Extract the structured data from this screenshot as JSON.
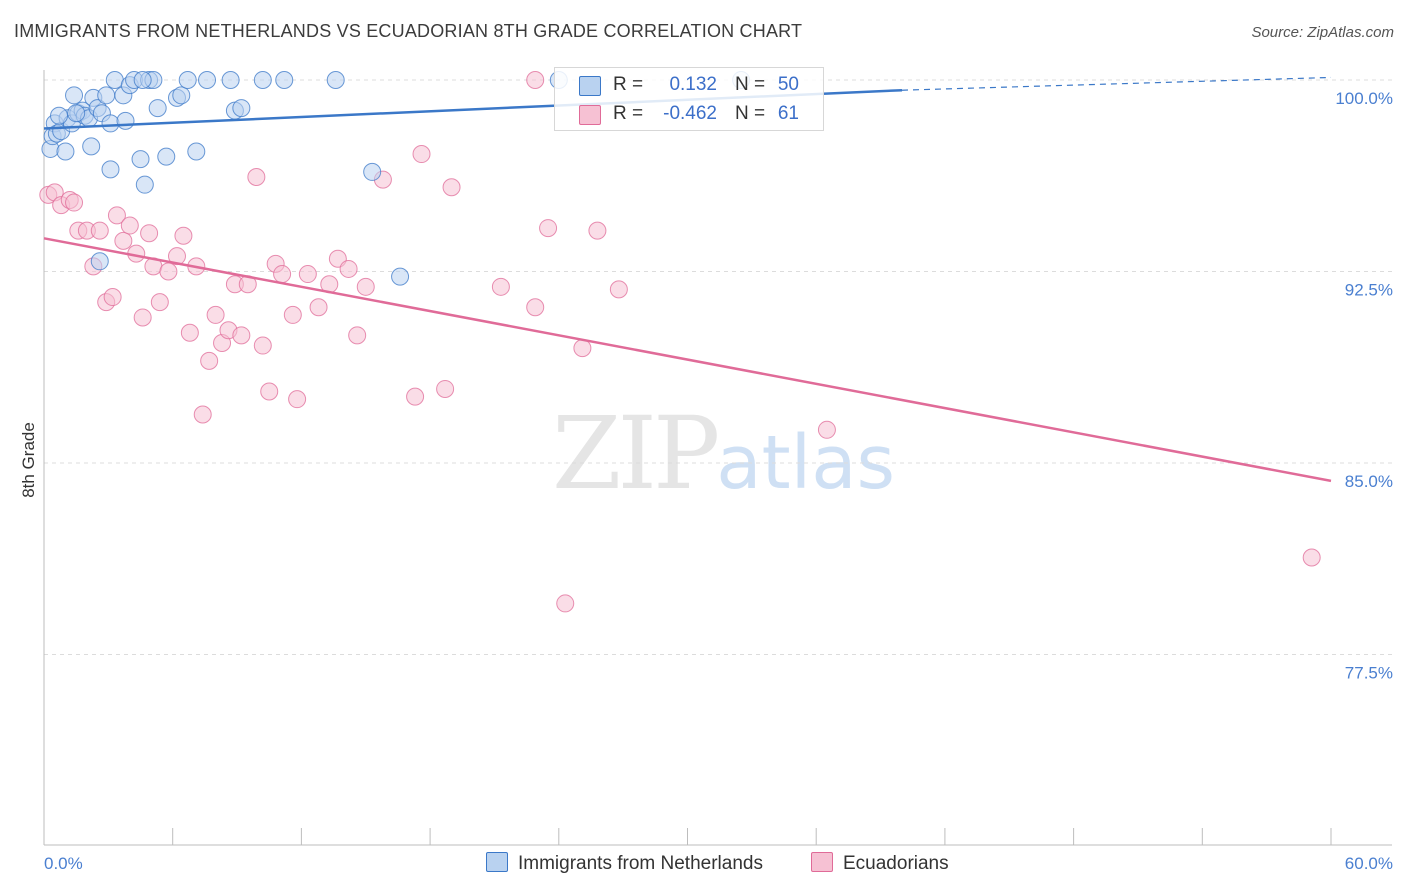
{
  "title": "IMMIGRANTS FROM NETHERLANDS VS ECUADORIAN 8TH GRADE CORRELATION CHART",
  "source": "Source: ZipAtlas.com",
  "watermark": {
    "zip": "ZIP",
    "atlas": "atlas"
  },
  "colors": {
    "blue": "#3b78c8",
    "blue_fill": "#b9d2f0",
    "pink": "#e06b98",
    "pink_fill": "#f6c1d3",
    "grid": "#dcdcdc"
  },
  "legend": {
    "rows": [
      {
        "r_label": "R =",
        "r_value": "0.132",
        "n_label": "N =",
        "n_value": "50"
      },
      {
        "r_label": "R =",
        "r_value": "-0.462",
        "n_label": "N =",
        "n_value": "61"
      }
    ]
  },
  "bottom_legend": [
    "Immigrants from Netherlands",
    "Ecuadorians"
  ],
  "chart_data": {
    "type": "scatter",
    "ylabel": "8th Grade",
    "xlim": [
      0,
      60
    ],
    "ylim": [
      70.5,
      100.5
    ],
    "x_tick_labels": [
      "0.0%",
      "60.0%"
    ],
    "y_ticks": [
      {
        "value": 100.0,
        "label": "100.0%"
      },
      {
        "value": 92.5,
        "label": "92.5%"
      },
      {
        "value": 85.0,
        "label": "85.0%"
      },
      {
        "value": 77.5,
        "label": "77.5%"
      }
    ],
    "series": [
      {
        "name": "Immigrants from Netherlands",
        "color": "#3b78c8",
        "trend": {
          "x0": 0,
          "y0": 98.1,
          "x1": 40,
          "y1": 99.6,
          "dash_to_x": 60,
          "dash_to_y": 100.1
        },
        "points": [
          [
            0.3,
            97.3
          ],
          [
            0.4,
            97.8
          ],
          [
            0.5,
            98.3
          ],
          [
            0.6,
            97.9
          ],
          [
            0.8,
            98.0
          ],
          [
            1.0,
            97.2
          ],
          [
            1.1,
            98.5
          ],
          [
            1.3,
            98.3
          ],
          [
            1.4,
            99.4
          ],
          [
            1.6,
            98.7
          ],
          [
            1.8,
            98.8
          ],
          [
            1.9,
            98.6
          ],
          [
            2.1,
            98.5
          ],
          [
            2.2,
            97.4
          ],
          [
            2.3,
            99.3
          ],
          [
            2.5,
            98.9
          ],
          [
            2.7,
            98.7
          ],
          [
            2.9,
            99.4
          ],
          [
            3.1,
            98.3
          ],
          [
            3.3,
            100.0
          ],
          [
            3.7,
            99.4
          ],
          [
            3.8,
            98.4
          ],
          [
            4.0,
            99.8
          ],
          [
            4.2,
            100.0
          ],
          [
            4.5,
            96.9
          ],
          [
            4.7,
            95.9
          ],
          [
            4.9,
            100.0
          ],
          [
            5.1,
            100.0
          ],
          [
            5.3,
            98.9
          ],
          [
            5.7,
            97.0
          ],
          [
            6.2,
            99.3
          ],
          [
            6.4,
            99.4
          ],
          [
            6.7,
            100.0
          ],
          [
            7.1,
            97.2
          ],
          [
            7.6,
            100.0
          ],
          [
            8.7,
            100.0
          ],
          [
            8.9,
            98.8
          ],
          [
            9.2,
            98.9
          ],
          [
            10.2,
            100.0
          ],
          [
            11.2,
            100.0
          ],
          [
            13.6,
            100.0
          ],
          [
            15.3,
            96.4
          ],
          [
            16.6,
            92.3
          ],
          [
            24.0,
            100.0
          ],
          [
            32.5,
            100.0
          ],
          [
            2.6,
            92.9
          ],
          [
            3.1,
            96.5
          ],
          [
            1.5,
            98.7
          ],
          [
            4.6,
            100.0
          ],
          [
            0.7,
            98.6
          ]
        ]
      },
      {
        "name": "Ecuadorians",
        "color": "#e06b98",
        "trend": {
          "x0": 0,
          "y0": 93.8,
          "x1": 60,
          "y1": 84.3
        },
        "points": [
          [
            0.2,
            95.5
          ],
          [
            0.5,
            95.6
          ],
          [
            0.8,
            95.1
          ],
          [
            1.2,
            95.3
          ],
          [
            1.4,
            95.2
          ],
          [
            1.6,
            94.1
          ],
          [
            2.0,
            94.1
          ],
          [
            2.3,
            92.7
          ],
          [
            2.6,
            94.1
          ],
          [
            2.9,
            91.3
          ],
          [
            3.2,
            91.5
          ],
          [
            3.4,
            94.7
          ],
          [
            3.7,
            93.7
          ],
          [
            4.0,
            94.3
          ],
          [
            4.3,
            93.2
          ],
          [
            4.6,
            90.7
          ],
          [
            4.9,
            94.0
          ],
          [
            5.1,
            92.7
          ],
          [
            5.4,
            91.3
          ],
          [
            5.8,
            92.5
          ],
          [
            6.2,
            93.1
          ],
          [
            6.5,
            93.9
          ],
          [
            6.8,
            90.1
          ],
          [
            7.1,
            92.7
          ],
          [
            7.4,
            86.9
          ],
          [
            7.7,
            89.0
          ],
          [
            8.0,
            90.8
          ],
          [
            8.3,
            89.7
          ],
          [
            8.6,
            90.2
          ],
          [
            8.9,
            92.0
          ],
          [
            9.2,
            90.0
          ],
          [
            9.5,
            92.0
          ],
          [
            9.9,
            96.2
          ],
          [
            10.2,
            89.6
          ],
          [
            10.5,
            87.8
          ],
          [
            10.8,
            92.8
          ],
          [
            11.1,
            92.4
          ],
          [
            11.6,
            90.8
          ],
          [
            11.8,
            87.5
          ],
          [
            12.3,
            92.4
          ],
          [
            12.8,
            91.1
          ],
          [
            13.3,
            92.0
          ],
          [
            13.7,
            93.0
          ],
          [
            14.2,
            92.6
          ],
          [
            14.6,
            90.0
          ],
          [
            15.0,
            91.9
          ],
          [
            15.8,
            96.1
          ],
          [
            17.3,
            87.6
          ],
          [
            17.6,
            97.1
          ],
          [
            18.7,
            87.9
          ],
          [
            19.0,
            95.8
          ],
          [
            21.3,
            91.9
          ],
          [
            22.9,
            91.1
          ],
          [
            22.9,
            100.0
          ],
          [
            23.5,
            94.2
          ],
          [
            24.3,
            79.5
          ],
          [
            25.1,
            89.5
          ],
          [
            25.8,
            94.1
          ],
          [
            26.8,
            91.8
          ],
          [
            36.5,
            86.3
          ],
          [
            59.1,
            81.3
          ]
        ]
      }
    ]
  }
}
